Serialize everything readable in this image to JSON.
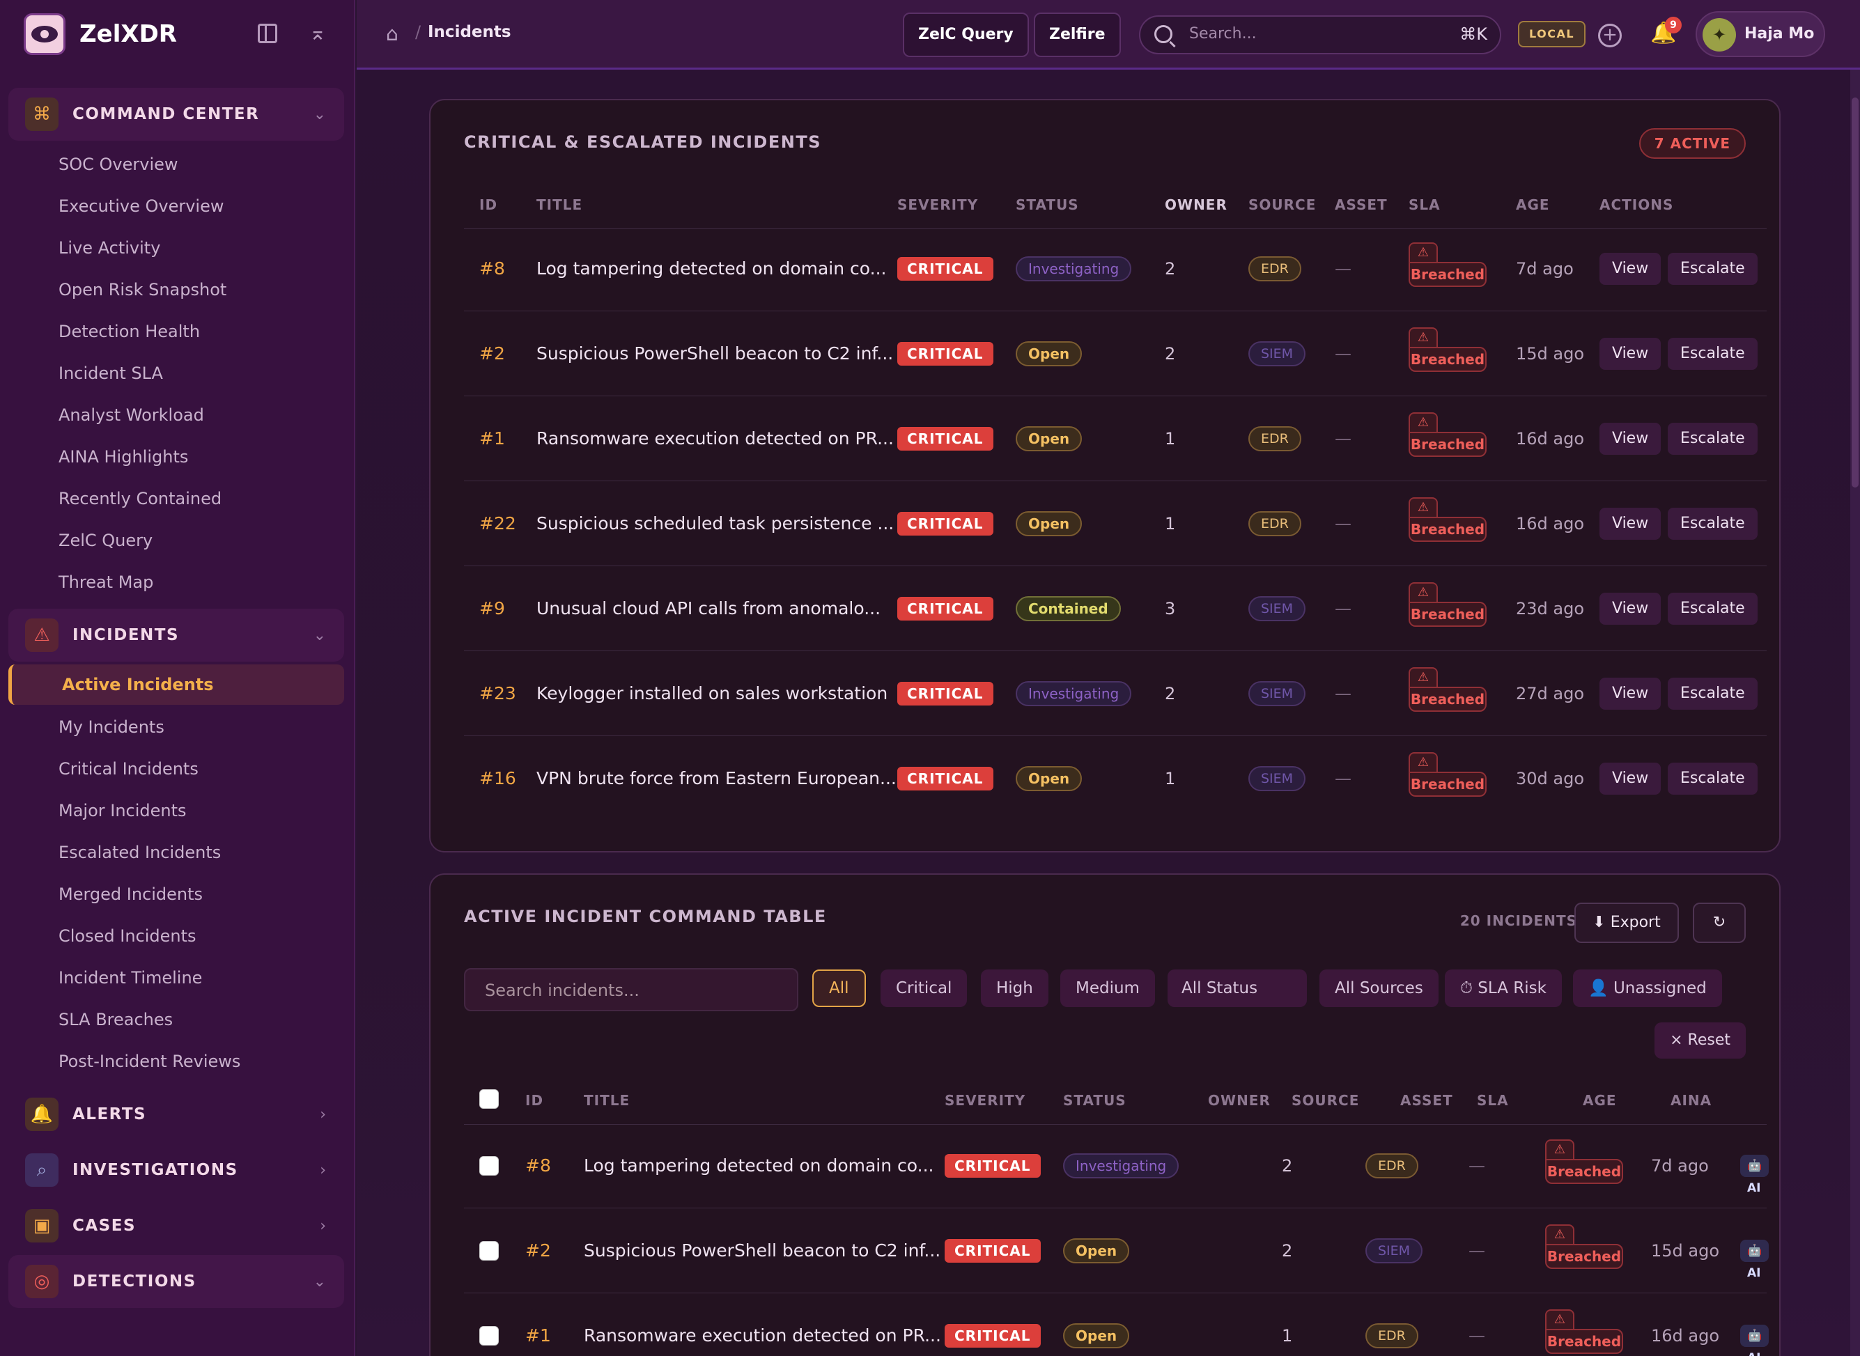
{
  "app": {
    "name": "ZelXDR"
  },
  "sidebar": {
    "sections": [
      {
        "label": "COMMAND CENTER",
        "icon": "command-icon"
      },
      {
        "label": "INCIDENTS",
        "icon": "warning-triangle-icon"
      },
      {
        "label": "ALERTS",
        "icon": "bell-icon"
      },
      {
        "label": "INVESTIGATIONS",
        "icon": "magnifier-icon"
      },
      {
        "label": "CASES",
        "icon": "briefcase-icon"
      },
      {
        "label": "DETECTIONS",
        "icon": "target-icon"
      }
    ],
    "command_center_items": [
      "SOC Overview",
      "Executive Overview",
      "Live Activity",
      "Open Risk Snapshot",
      "Detection Health",
      "Incident SLA",
      "Analyst Workload",
      "AINA Highlights",
      "Recently Contained",
      "ZelC Query",
      "Threat Map"
    ],
    "incident_items": [
      "Active Incidents",
      "My Incidents",
      "Critical Incidents",
      "Major Incidents",
      "Escalated Incidents",
      "Merged Incidents",
      "Closed Incidents",
      "Incident Timeline",
      "SLA Breaches",
      "Post-Incident Reviews"
    ]
  },
  "topbar": {
    "breadcrumb": "Incidents",
    "btn_query": "ZelC Query",
    "btn_zelfire": "Zelfire",
    "search_placeholder": "Search...",
    "search_shortcut": "⌘K",
    "env_badge": "LOCAL",
    "notif_count": "9",
    "user_name": "Haja Mo"
  },
  "critical": {
    "title": "CRITICAL & ESCALATED INCIDENTS",
    "badge": "7 ACTIVE",
    "columns": [
      "ID",
      "TITLE",
      "SEVERITY",
      "STATUS",
      "OWNER",
      "SOURCE",
      "ASSET",
      "SLA",
      "AGE",
      "ACTIONS"
    ],
    "rows": [
      {
        "id": "#8",
        "title": "Log tampering detected on domain co...",
        "severity": "CRITICAL",
        "status": "Investigating",
        "owner": "2",
        "source": "EDR",
        "asset": "—",
        "sla": "Breached",
        "age": "7d ago"
      },
      {
        "id": "#2",
        "title": "Suspicious PowerShell beacon to C2 inf...",
        "severity": "CRITICAL",
        "status": "Open",
        "owner": "2",
        "source": "SIEM",
        "asset": "—",
        "sla": "Breached",
        "age": "15d ago"
      },
      {
        "id": "#1",
        "title": "Ransomware execution detected on PR...",
        "severity": "CRITICAL",
        "status": "Open",
        "owner": "1",
        "source": "EDR",
        "asset": "—",
        "sla": "Breached",
        "age": "16d ago"
      },
      {
        "id": "#22",
        "title": "Suspicious scheduled task persistence ...",
        "severity": "CRITICAL",
        "status": "Open",
        "owner": "1",
        "source": "EDR",
        "asset": "—",
        "sla": "Breached",
        "age": "16d ago"
      },
      {
        "id": "#9",
        "title": "Unusual cloud API calls from anomalo...",
        "severity": "CRITICAL",
        "status": "Contained",
        "owner": "3",
        "source": "SIEM",
        "asset": "—",
        "sla": "Breached",
        "age": "23d ago"
      },
      {
        "id": "#23",
        "title": "Keylogger installed on sales workstation",
        "severity": "CRITICAL",
        "status": "Investigating",
        "owner": "2",
        "source": "SIEM",
        "asset": "—",
        "sla": "Breached",
        "age": "27d ago"
      },
      {
        "id": "#16",
        "title": "VPN brute force from Eastern European...",
        "severity": "CRITICAL",
        "status": "Open",
        "owner": "1",
        "source": "SIEM",
        "asset": "—",
        "sla": "Breached",
        "age": "30d ago"
      }
    ],
    "view_label": "View",
    "escalate_label": "Escalate"
  },
  "command": {
    "title": "ACTIVE INCIDENT COMMAND TABLE",
    "count": "20 INCIDENTS",
    "export_label": "⬇ Export",
    "refresh_icon": "refresh-icon",
    "search_placeholder": "Search incidents...",
    "filters": [
      "All",
      "Critical",
      "High",
      "Medium",
      "All Status",
      "All Sources",
      "⏱ SLA Risk",
      "👤 Unassigned"
    ],
    "reset_label": "× Reset",
    "columns": [
      "ID",
      "TITLE",
      "SEVERITY",
      "STATUS",
      "OWNER",
      "SOURCE",
      "ASSET",
      "SLA",
      "AGE",
      "AINA"
    ],
    "rows": [
      {
        "id": "#8",
        "title": "Log tampering detected on domain co...",
        "severity": "CRITICAL",
        "status": "Investigating",
        "owner": "2",
        "source": "EDR",
        "asset": "—",
        "sla": "Breached",
        "age": "7d ago",
        "aina": "🤖 AI"
      },
      {
        "id": "#2",
        "title": "Suspicious PowerShell beacon to C2 inf...",
        "severity": "CRITICAL",
        "status": "Open",
        "owner": "2",
        "source": "SIEM",
        "asset": "—",
        "sla": "Breached",
        "age": "15d ago",
        "aina": "🤖 AI"
      },
      {
        "id": "#1",
        "title": "Ransomware execution detected on PR...",
        "severity": "CRITICAL",
        "status": "Open",
        "owner": "1",
        "source": "EDR",
        "asset": "—",
        "sla": "Breached",
        "age": "16d ago",
        "aina": "🤖 AI"
      }
    ]
  },
  "colors": {
    "accent": "#f0a544",
    "critical": "#dc3f3b",
    "sidebar_bg": "#37113f"
  }
}
